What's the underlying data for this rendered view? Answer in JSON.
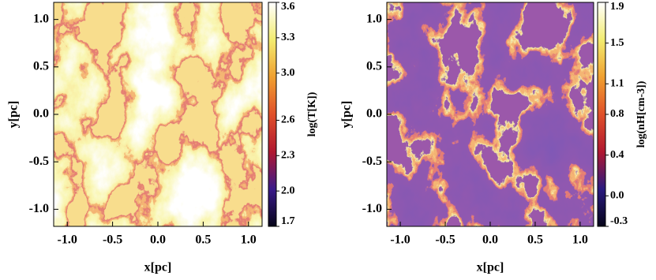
{
  "chart_data": [
    {
      "type": "image",
      "xlabel": "x[pc]",
      "ylabel": "y[pc]",
      "xlim": [
        -1.15,
        1.15
      ],
      "ylim": [
        -1.18,
        1.18
      ],
      "xticks": [
        {
          "value": -1,
          "label": "-1.0"
        },
        -0.5,
        {
          "value": 0,
          "label": "0.0"
        },
        0.5,
        {
          "value": 1,
          "label": "1.0"
        }
      ],
      "yticks": [
        {
          "value": -1,
          "label": "-1.0"
        },
        -0.5,
        {
          "value": 0,
          "label": "0.0"
        },
        0.5,
        {
          "value": 1,
          "label": "1.0"
        }
      ],
      "colorbar_label": "log(T[K])",
      "clim": [
        1.7,
        3.6
      ],
      "cticks": [
        1.7,
        {
          "value": 2,
          "label": "2.0"
        },
        2.3,
        2.6,
        {
          "value": 3,
          "label": "3.0"
        },
        3.3,
        3.6
      ],
      "colormap": [
        "#050418",
        "#3a1a8a",
        "#b01830",
        "#e0502a",
        "#f0a030",
        "#f2ec70",
        "#ffffff"
      ]
    },
    {
      "type": "image",
      "xlabel": "x[pc]",
      "ylabel": "y[pc]",
      "xlim": [
        -1.15,
        1.15
      ],
      "ylim": [
        -1.18,
        1.18
      ],
      "xticks": [
        {
          "value": -1,
          "label": "-1.0"
        },
        -0.5,
        {
          "value": 0,
          "label": "0.0"
        },
        0.5,
        {
          "value": 1,
          "label": "1.0"
        }
      ],
      "yticks": [
        {
          "value": -1,
          "label": "-1.0"
        },
        -0.5,
        {
          "value": 0,
          "label": "0.0"
        },
        0.5,
        {
          "value": 1,
          "label": "1.0"
        }
      ],
      "colorbar_label": "log(nH[cm-3])",
      "clim": [
        -0.3,
        1.9
      ],
      "cticks": [
        -0.3,
        {
          "value": 0,
          "label": "0.0"
        },
        0.4,
        0.8,
        1.1,
        1.5,
        1.9
      ],
      "colormap": [
        "#050418",
        "#2a1a80",
        "#b01830",
        "#e0502a",
        "#f0a030",
        "#f2ec70",
        "#ffffff"
      ]
    }
  ]
}
